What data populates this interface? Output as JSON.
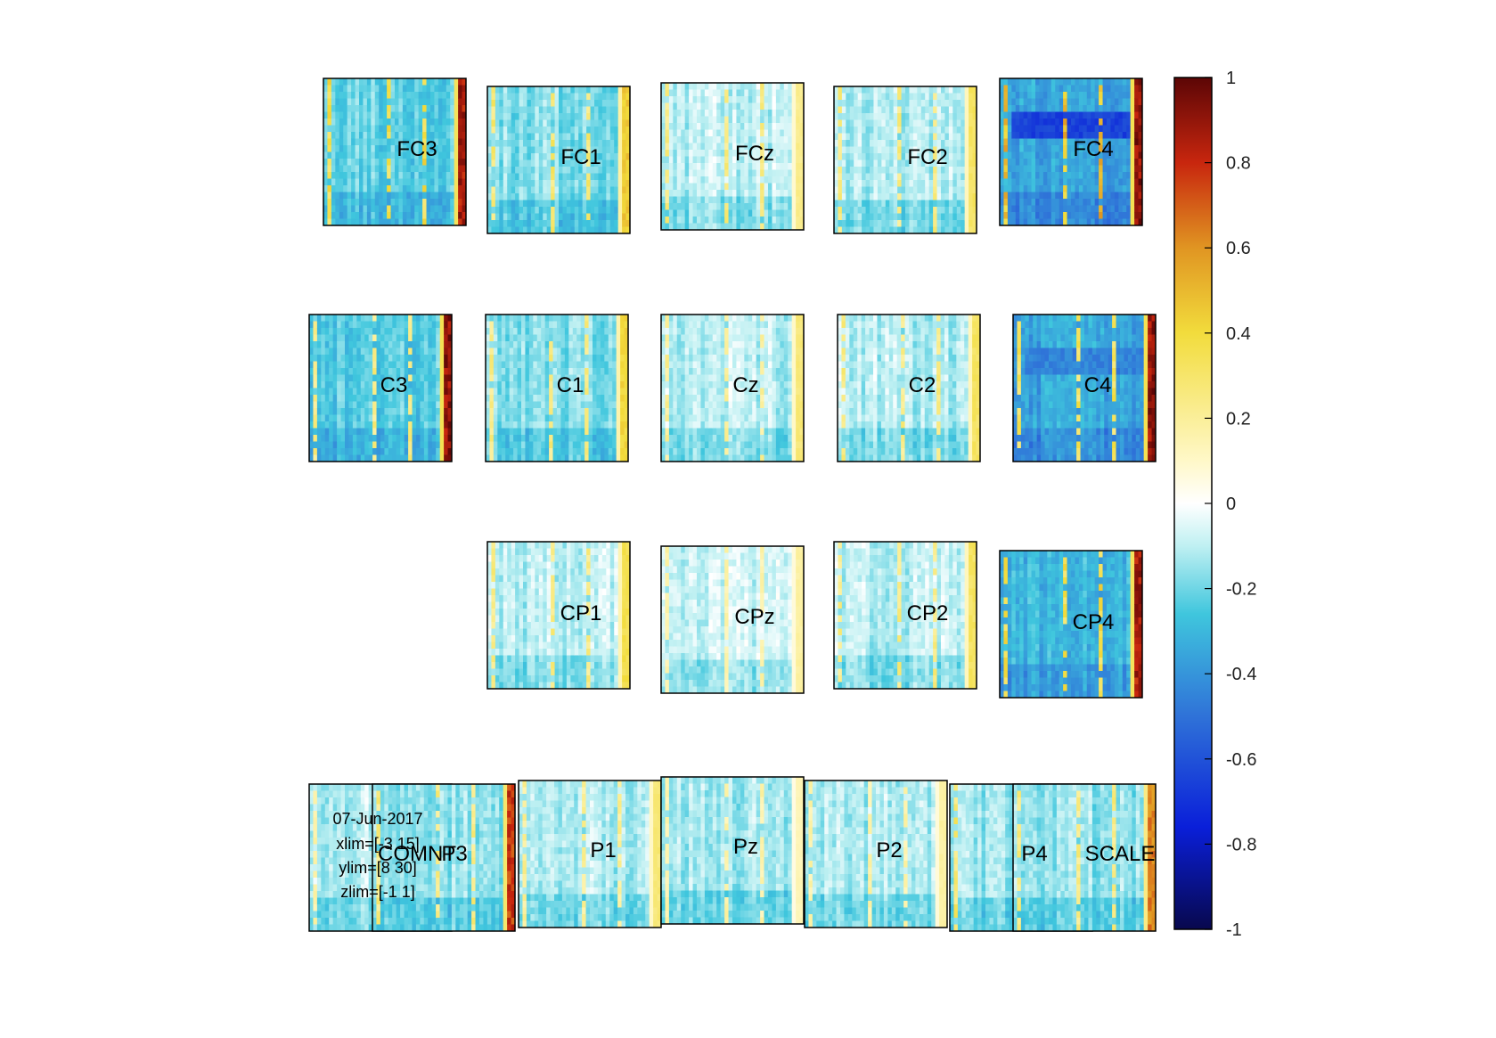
{
  "chart_data": {
    "type": "heatmap",
    "description_text": {
      "date": "07-Jun-2017",
      "xlim": "xlim=[-3 15]",
      "ylim": "ylim=[8 30]",
      "zlim": "zlim=[-1 1]"
    },
    "colorbar": {
      "ticks": [
        "1",
        "0.8",
        "0.6",
        "0.4",
        "0.2",
        "0",
        "-0.2",
        "-0.4",
        "-0.6",
        "-0.8",
        "-1"
      ],
      "range": [
        -1,
        1
      ],
      "colormap": "jet"
    },
    "channels": [
      {
        "label": "FC3",
        "base": -0.22,
        "edge": 0.95,
        "stripe": 0.45
      },
      {
        "label": "FC1",
        "base": -0.17,
        "edge": 0.5,
        "stripe": 0.35
      },
      {
        "label": "FCz",
        "base": -0.1,
        "edge": 0.25,
        "stripe": 0.3
      },
      {
        "label": "FC2",
        "base": -0.12,
        "edge": 0.35,
        "stripe": 0.3
      },
      {
        "label": "FC4",
        "base": -0.35,
        "edge": 1.0,
        "stripe": 0.6,
        "band": -0.65
      },
      {
        "label": "C3",
        "base": -0.24,
        "edge": 1.0,
        "stripe": 0.3
      },
      {
        "label": "C1",
        "base": -0.17,
        "edge": 0.45,
        "stripe": 0.3
      },
      {
        "label": "Cz",
        "base": -0.1,
        "edge": 0.3,
        "stripe": 0.25
      },
      {
        "label": "C2",
        "base": -0.11,
        "edge": 0.35,
        "stripe": 0.3
      },
      {
        "label": "C4",
        "base": -0.35,
        "edge": 1.0,
        "stripe": 0.4,
        "band": -0.45
      },
      {
        "label": "CP1",
        "base": -0.1,
        "edge": 0.4,
        "stripe": 0.3
      },
      {
        "label": "CPz",
        "base": -0.07,
        "edge": 0.2,
        "stripe": 0.2
      },
      {
        "label": "CP2",
        "base": -0.1,
        "edge": 0.35,
        "stripe": 0.3
      },
      {
        "label": "CP4",
        "base": -0.3,
        "edge": 0.95,
        "stripe": 0.45
      },
      {
        "label": "COMNT",
        "base": -0.1,
        "edge": 0.0,
        "stripe": 0.2
      },
      {
        "label": "P3",
        "base": -0.15,
        "edge": 0.85,
        "stripe": 0.3
      },
      {
        "label": "P1",
        "base": -0.12,
        "edge": 0.3,
        "stripe": 0.25
      },
      {
        "label": "Pz",
        "base": -0.13,
        "edge": 0.15,
        "stripe": 0.2
      },
      {
        "label": "P2",
        "base": -0.12,
        "edge": 0.2,
        "stripe": 0.2
      },
      {
        "label": "P4",
        "base": -0.15,
        "edge": 0.35,
        "stripe": 0.35
      },
      {
        "label": "SCALE",
        "base": -0.15,
        "edge": 0.7,
        "stripe": 0.3
      }
    ]
  }
}
